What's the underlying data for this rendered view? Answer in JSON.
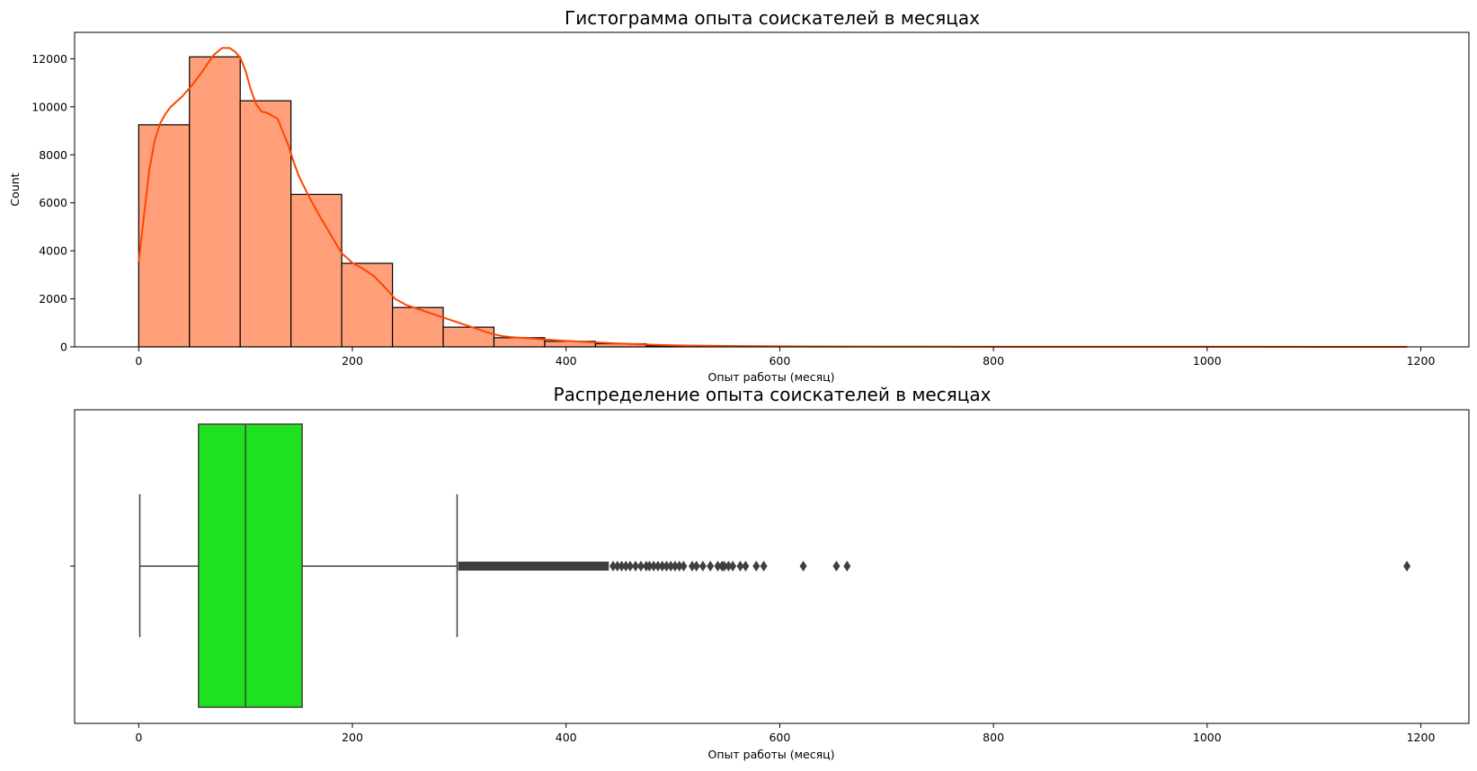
{
  "chart_data": [
    {
      "type": "bar",
      "subtype": "histogram",
      "title": "Гистограмма опыта соискателей в месяцах",
      "xlabel": "Опыт работы (месяц)",
      "ylabel": "Count",
      "xlim": [
        -60,
        1245
      ],
      "ylim": [
        0,
        13100
      ],
      "xticks": [
        "0",
        "200",
        "400",
        "600",
        "800",
        "1000",
        "1200"
      ],
      "yticks": [
        "0",
        "2000",
        "4000",
        "6000",
        "8000",
        "10000",
        "12000"
      ],
      "bin_width": 47.5,
      "bins": [
        {
          "x0": 0,
          "x1": 47.5,
          "count": 9250
        },
        {
          "x0": 47.5,
          "x1": 95,
          "count": 12080
        },
        {
          "x0": 95,
          "x1": 142.5,
          "count": 10250
        },
        {
          "x0": 142.5,
          "x1": 190,
          "count": 6350
        },
        {
          "x0": 190,
          "x1": 237.5,
          "count": 3480
        },
        {
          "x0": 237.5,
          "x1": 285,
          "count": 1640
        },
        {
          "x0": 285,
          "x1": 332.5,
          "count": 820
        },
        {
          "x0": 332.5,
          "x1": 380,
          "count": 380
        },
        {
          "x0": 380,
          "x1": 427.5,
          "count": 230
        },
        {
          "x0": 427.5,
          "x1": 475,
          "count": 130
        },
        {
          "x0": 475,
          "x1": 522.5,
          "count": 45
        },
        {
          "x0": 522.5,
          "x1": 570,
          "count": 25
        },
        {
          "x0": 570,
          "x1": 617.5,
          "count": 10
        },
        {
          "x0": 617.5,
          "x1": 665,
          "count": 5
        },
        {
          "x0": 1140,
          "x1": 1187.5,
          "count": 1
        }
      ],
      "kde": {
        "x": [
          0,
          5,
          10,
          15,
          20,
          25,
          30,
          40,
          50,
          60,
          70,
          78,
          85,
          90,
          95,
          100,
          105,
          110,
          115,
          120,
          130,
          140,
          145,
          150,
          160,
          170,
          180,
          190,
          200,
          210,
          220,
          230,
          240,
          250,
          260,
          270,
          280,
          290,
          300,
          310,
          320,
          330,
          340,
          350,
          360,
          380,
          400,
          420,
          440,
          460,
          480,
          500,
          550,
          600,
          650,
          700,
          800,
          900,
          1000,
          1100,
          1187
        ],
        "y": [
          3550,
          5500,
          7400,
          8600,
          9300,
          9700,
          10000,
          10400,
          10900,
          11500,
          12150,
          12450,
          12450,
          12300,
          12050,
          11500,
          10700,
          10100,
          9800,
          9750,
          9500,
          8400,
          7700,
          7100,
          6200,
          5400,
          4650,
          3900,
          3500,
          3250,
          2950,
          2500,
          2000,
          1750,
          1600,
          1450,
          1300,
          1150,
          1000,
          850,
          700,
          550,
          450,
          400,
          370,
          310,
          250,
          200,
          160,
          120,
          90,
          65,
          35,
          22,
          15,
          10,
          6,
          4,
          3,
          2,
          1
        ],
        "color": "#ff4500"
      },
      "bar_color": "#ffa07a",
      "edge_color": "#000000"
    },
    {
      "type": "boxplot",
      "title": "Распределение опыта соискателей в месяцах",
      "xlabel": "Опыт работы (месяц)",
      "xlim": [
        -60,
        1245
      ],
      "xticks": [
        "0",
        "200",
        "400",
        "600",
        "800",
        "1000",
        "1200"
      ],
      "whisker_low": 1,
      "q1": 56,
      "median": 100,
      "q3": 153,
      "whisker_high": 298,
      "dense_outliers_range": [
        299,
        440
      ],
      "outliers": [
        444,
        448,
        452,
        456,
        460,
        465,
        470,
        475,
        478,
        482,
        486,
        490,
        494,
        498,
        502,
        506,
        510,
        518,
        522,
        528,
        535,
        542,
        546,
        548,
        552,
        556,
        563,
        568,
        578,
        585,
        622,
        653,
        663,
        1187
      ],
      "box_color": "#1fe21f",
      "line_color": "#3f3f3f"
    }
  ]
}
